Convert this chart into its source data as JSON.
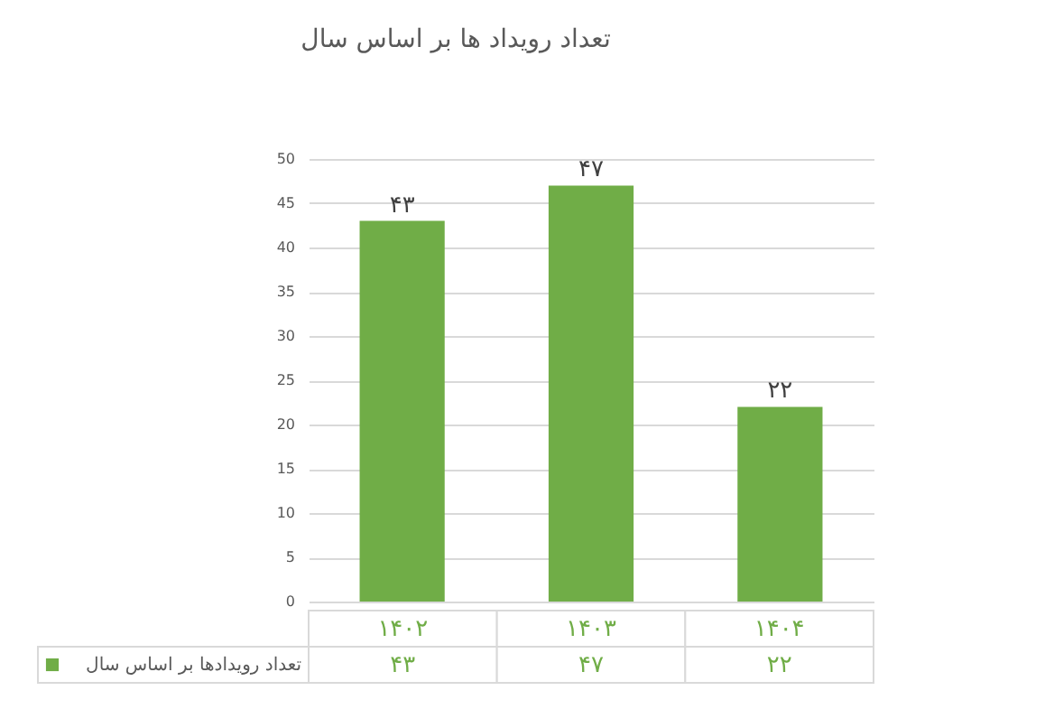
{
  "chart_data": {
    "type": "bar",
    "title": "تعداد رویداد ها بر اساس سال",
    "categories": [
      "۱۴۰۲",
      "۱۴۰۳",
      "۱۴۰۴"
    ],
    "series": [
      {
        "name": "تعداد رویدادها بر اساس سال",
        "color": "#70ad47",
        "values": [
          43,
          47,
          22
        ],
        "value_labels": [
          "۴۳",
          "۴۷",
          "۲۲"
        ]
      }
    ],
    "ylim": [
      0,
      50
    ],
    "yticks": [
      0,
      5,
      10,
      15,
      20,
      25,
      30,
      35,
      40,
      45,
      50
    ],
    "grid": "y",
    "legend": "bottom left"
  }
}
